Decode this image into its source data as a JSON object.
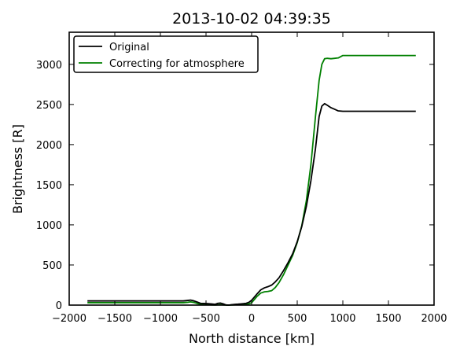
{
  "chart_data": {
    "type": "line",
    "title": "2013-10-02 04:39:35",
    "xlabel": "North distance [km]",
    "ylabel": "Brightness [R]",
    "xlim": [
      -2000,
      2000
    ],
    "ylim": [
      0,
      3400
    ],
    "xticks": [
      -2000,
      -1500,
      -1000,
      -500,
      0,
      500,
      1000,
      1500,
      2000
    ],
    "yticks": [
      0,
      500,
      1000,
      1500,
      2000,
      2500,
      3000
    ],
    "grid": false,
    "legend_position": "top-left",
    "series": [
      {
        "name": "Original",
        "color": "#000000",
        "points": [
          [
            -1800,
            52
          ],
          [
            -1400,
            52
          ],
          [
            -1000,
            52
          ],
          [
            -750,
            52
          ],
          [
            -700,
            58
          ],
          [
            -670,
            62
          ],
          [
            -640,
            55
          ],
          [
            -600,
            40
          ],
          [
            -560,
            22
          ],
          [
            -520,
            20
          ],
          [
            -480,
            18
          ],
          [
            -440,
            14
          ],
          [
            -400,
            10
          ],
          [
            -370,
            22
          ],
          [
            -340,
            25
          ],
          [
            -310,
            15
          ],
          [
            -280,
            2
          ],
          [
            -250,
            0
          ],
          [
            -220,
            5
          ],
          [
            -180,
            10
          ],
          [
            -150,
            12
          ],
          [
            -120,
            15
          ],
          [
            -90,
            18
          ],
          [
            -60,
            22
          ],
          [
            -30,
            35
          ],
          [
            0,
            60
          ],
          [
            30,
            100
          ],
          [
            60,
            140
          ],
          [
            100,
            190
          ],
          [
            140,
            215
          ],
          [
            180,
            230
          ],
          [
            220,
            250
          ],
          [
            260,
            290
          ],
          [
            300,
            340
          ],
          [
            350,
            430
          ],
          [
            400,
            530
          ],
          [
            450,
            640
          ],
          [
            500,
            790
          ],
          [
            550,
            980
          ],
          [
            600,
            1230
          ],
          [
            650,
            1550
          ],
          [
            700,
            1950
          ],
          [
            740,
            2350
          ],
          [
            770,
            2480
          ],
          [
            800,
            2510
          ],
          [
            830,
            2490
          ],
          [
            870,
            2460
          ],
          [
            910,
            2440
          ],
          [
            950,
            2420
          ],
          [
            1000,
            2415
          ],
          [
            1200,
            2415
          ],
          [
            1500,
            2415
          ],
          [
            1800,
            2415
          ]
        ]
      },
      {
        "name": "Correcting for atmosphere",
        "color": "#008000",
        "points": [
          [
            -1800,
            30
          ],
          [
            -1400,
            30
          ],
          [
            -1000,
            30
          ],
          [
            -750,
            30
          ],
          [
            -700,
            35
          ],
          [
            -670,
            40
          ],
          [
            -640,
            35
          ],
          [
            -600,
            22
          ],
          [
            -560,
            8
          ],
          [
            -520,
            5
          ],
          [
            -480,
            5
          ],
          [
            -440,
            3
          ],
          [
            -400,
            2
          ],
          [
            -370,
            4
          ],
          [
            -340,
            5
          ],
          [
            -310,
            3
          ],
          [
            -280,
            0
          ],
          [
            -250,
            0
          ],
          [
            -220,
            2
          ],
          [
            -180,
            4
          ],
          [
            -150,
            5
          ],
          [
            -120,
            6
          ],
          [
            -90,
            8
          ],
          [
            -60,
            10
          ],
          [
            -30,
            15
          ],
          [
            0,
            30
          ],
          [
            30,
            70
          ],
          [
            60,
            110
          ],
          [
            100,
            150
          ],
          [
            140,
            165
          ],
          [
            180,
            170
          ],
          [
            220,
            180
          ],
          [
            260,
            220
          ],
          [
            300,
            280
          ],
          [
            350,
            380
          ],
          [
            400,
            500
          ],
          [
            450,
            620
          ],
          [
            500,
            780
          ],
          [
            550,
            990
          ],
          [
            600,
            1300
          ],
          [
            650,
            1750
          ],
          [
            700,
            2350
          ],
          [
            740,
            2800
          ],
          [
            770,
            3000
          ],
          [
            800,
            3070
          ],
          [
            830,
            3075
          ],
          [
            870,
            3070
          ],
          [
            910,
            3075
          ],
          [
            950,
            3080
          ],
          [
            1000,
            3110
          ],
          [
            1200,
            3110
          ],
          [
            1500,
            3110
          ],
          [
            1800,
            3110
          ]
        ]
      }
    ]
  }
}
